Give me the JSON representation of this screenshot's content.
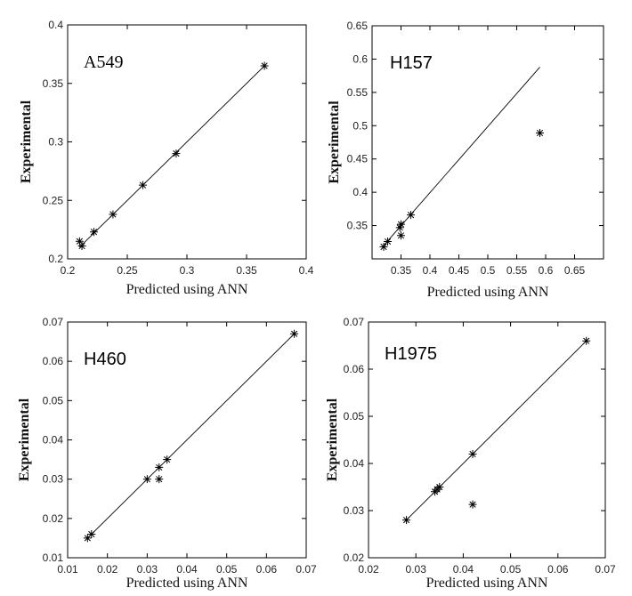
{
  "chart_data": [
    {
      "type": "scatter",
      "title": "A549",
      "xlabel": "Predicted using ANN",
      "ylabel": "Experimental",
      "xlim": [
        0.2,
        0.4
      ],
      "ylim": [
        0.2,
        0.4
      ],
      "xticks": [
        "0.2",
        "0.25",
        "0.3",
        "0.35",
        "0.4"
      ],
      "yticks": [
        "0.2",
        "0.25",
        "0.3",
        "0.35",
        "0.4"
      ],
      "fit_line": {
        "x": [
          0.21,
          0.365
        ],
        "y": [
          0.21,
          0.365
        ]
      },
      "points": [
        {
          "x": 0.21,
          "y": 0.215
        },
        {
          "x": 0.212,
          "y": 0.211
        },
        {
          "x": 0.222,
          "y": 0.223
        },
        {
          "x": 0.238,
          "y": 0.238
        },
        {
          "x": 0.263,
          "y": 0.263
        },
        {
          "x": 0.291,
          "y": 0.29
        },
        {
          "x": 0.365,
          "y": 0.365
        }
      ],
      "marker": "asterisk",
      "grid": false
    },
    {
      "type": "scatter",
      "title": "H157",
      "xlabel": "Predicted using ANN",
      "ylabel": "Experimental",
      "xlim": [
        0.3,
        0.7
      ],
      "ylim": [
        0.3,
        0.65
      ],
      "xticks": [
        "0.35",
        "0.4",
        "0.45",
        "0.5",
        "0.55",
        "0.6",
        "0.65"
      ],
      "yticks": [
        "0.35",
        "0.4",
        "0.45",
        "0.5",
        "0.55",
        "0.6",
        "0.65"
      ],
      "fit_line": {
        "x": [
          0.318,
          0.59
        ],
        "y": [
          0.318,
          0.588
        ]
      },
      "points": [
        {
          "x": 0.32,
          "y": 0.318
        },
        {
          "x": 0.327,
          "y": 0.326
        },
        {
          "x": 0.348,
          "y": 0.347
        },
        {
          "x": 0.35,
          "y": 0.352
        },
        {
          "x": 0.35,
          "y": 0.335
        },
        {
          "x": 0.367,
          "y": 0.366
        },
        {
          "x": 0.59,
          "y": 0.489
        }
      ],
      "marker": "asterisk",
      "grid": false
    },
    {
      "type": "scatter",
      "title": "H460",
      "xlabel": "Predicted using ANN",
      "ylabel": "Experimental",
      "xlim": [
        0.01,
        0.07
      ],
      "ylim": [
        0.01,
        0.07
      ],
      "xticks": [
        "0.01",
        "0.02",
        "0.03",
        "0.04",
        "0.05",
        "0.06",
        "0.07"
      ],
      "yticks": [
        "0.01",
        "0.02",
        "0.03",
        "0.04",
        "0.05",
        "0.06",
        "0.07"
      ],
      "fit_line": {
        "x": [
          0.015,
          0.067
        ],
        "y": [
          0.015,
          0.067
        ]
      },
      "points": [
        {
          "x": 0.015,
          "y": 0.015
        },
        {
          "x": 0.016,
          "y": 0.016
        },
        {
          "x": 0.03,
          "y": 0.03
        },
        {
          "x": 0.033,
          "y": 0.03
        },
        {
          "x": 0.033,
          "y": 0.033
        },
        {
          "x": 0.035,
          "y": 0.035
        },
        {
          "x": 0.067,
          "y": 0.067
        }
      ],
      "marker": "asterisk",
      "grid": false
    },
    {
      "type": "scatter",
      "title": "H1975",
      "xlabel": "Predicted using ANN",
      "ylabel": "Experimental",
      "xlim": [
        0.02,
        0.07
      ],
      "ylim": [
        0.02,
        0.07
      ],
      "xticks": [
        "0.02",
        "0.03",
        "0.04",
        "0.05",
        "0.06",
        "0.07"
      ],
      "yticks": [
        "0.02",
        "0.03",
        "0.04",
        "0.05",
        "0.06",
        "0.07"
      ],
      "fit_line": {
        "x": [
          0.028,
          0.066
        ],
        "y": [
          0.028,
          0.066
        ]
      },
      "points": [
        {
          "x": 0.028,
          "y": 0.028
        },
        {
          "x": 0.034,
          "y": 0.034
        },
        {
          "x": 0.0345,
          "y": 0.0345
        },
        {
          "x": 0.035,
          "y": 0.035
        },
        {
          "x": 0.042,
          "y": 0.042
        },
        {
          "x": 0.042,
          "y": 0.0313
        },
        {
          "x": 0.066,
          "y": 0.066
        }
      ],
      "marker": "asterisk",
      "grid": false
    }
  ]
}
